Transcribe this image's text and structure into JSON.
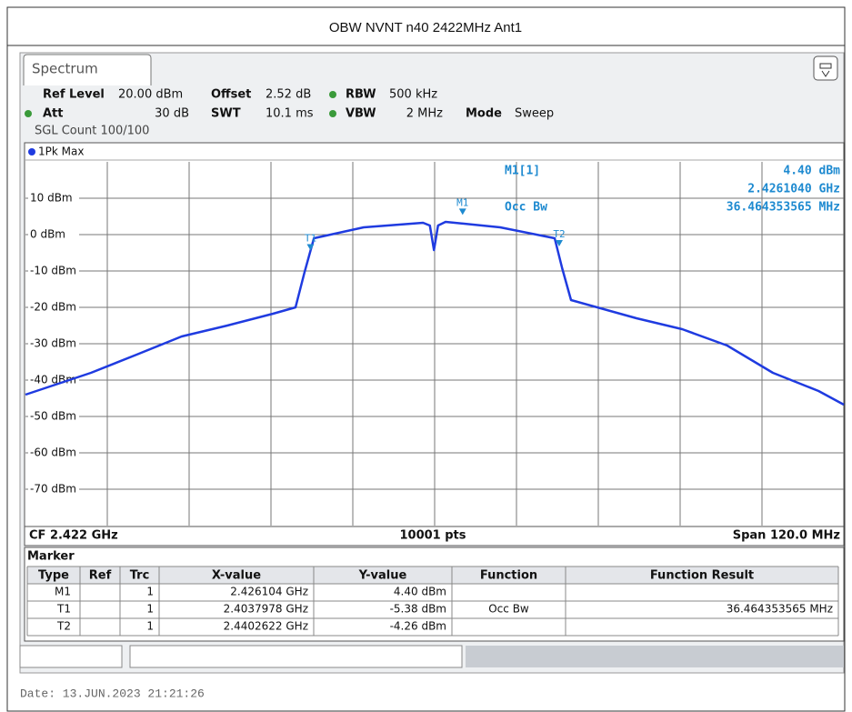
{
  "title": "OBW NVNT n40 2422MHz Ant1",
  "tab": "Spectrum",
  "settings": {
    "row1": [
      "Ref Level",
      "20.00 dBm",
      "Offset",
      "2.52 dB",
      "RBW",
      "500 kHz"
    ],
    "row2": [
      "Att",
      "30 dB",
      "SWT",
      "10.1 ms",
      "VBW",
      "2 MHz",
      "Mode",
      "Sweep"
    ],
    "row3": "SGL Count 100/100"
  },
  "chart_data": {
    "type": "line",
    "xlim": [
      2.362,
      2.482
    ],
    "ylim": [
      -80,
      20
    ],
    "yticks": [
      {
        "value": 10,
        "label": "10 dBm"
      },
      {
        "value": 0,
        "label": "0 dBm"
      },
      {
        "value": -10,
        "label": "-10 dBm"
      },
      {
        "value": -20,
        "label": "-20 dBm"
      },
      {
        "value": -30,
        "label": "-30 dBm"
      },
      {
        "value": -40,
        "label": "-40 dBm"
      },
      {
        "value": -50,
        "label": "-50 dBm"
      },
      {
        "value": -60,
        "label": "-60 dBm"
      },
      {
        "value": -70,
        "label": "-70 dBm"
      }
    ],
    "grid": true,
    "x": [
      2.362,
      2.3716,
      2.3783,
      2.3849,
      2.3916,
      2.3983,
      2.4016,
      2.4029,
      2.4043,
      2.4116,
      2.4203,
      2.4213,
      2.4219,
      2.4225,
      2.4236,
      2.4316,
      2.4396,
      2.4407,
      2.442,
      2.4516,
      2.4583,
      2.4649,
      2.4716,
      2.4783,
      2.482
    ],
    "series": [
      {
        "name": "1Pk Max",
        "color": "#1f3be0",
        "values": [
          -44,
          -38,
          -33,
          -28,
          -25,
          -21.75,
          -20,
          -10.5,
          -1,
          2,
          3.25,
          2.5,
          -4.25,
          2.5,
          3.5,
          2,
          -1,
          -9.25,
          -18,
          -23,
          -26,
          -30.5,
          -38,
          -43,
          -46.75
        ]
      }
    ],
    "markers": [
      {
        "label": "M1",
        "x": 2.426104,
        "y": 4.4
      },
      {
        "label": "T1",
        "x": 2.4037978,
        "y": -5.38
      },
      {
        "label": "T2",
        "x": 2.4402622,
        "y": -4.26
      }
    ],
    "marker_info": [
      "M1[1]",
      "4.40 dBm",
      "2.4261040 GHz",
      "Occ Bw",
      "36.464353565 MHz"
    ],
    "footer": [
      "CF 2.422 GHz",
      "10001 pts",
      "Span 120.0 MHz"
    ]
  },
  "marker_table": {
    "title": "Marker",
    "columns": [
      "Type",
      "Ref",
      "Trc",
      "X-value",
      "Y-value",
      "Function",
      "Function Result"
    ],
    "rows": [
      {
        "type": "M1",
        "trc": "1",
        "x": "2.426104 GHz",
        "y": "4.40 dBm"
      },
      {
        "type": "T1",
        "trc": "1",
        "x": "2.4037978 GHz",
        "y": "-5.38 dBm",
        "function": "Occ Bw",
        "result": "36.464353565 MHz"
      },
      {
        "type": "T2",
        "trc": "1",
        "x": "2.4402622 GHz",
        "y": "-4.26 dBm"
      }
    ]
  },
  "date": "Date: 13.JUN.2023  21:21:26"
}
